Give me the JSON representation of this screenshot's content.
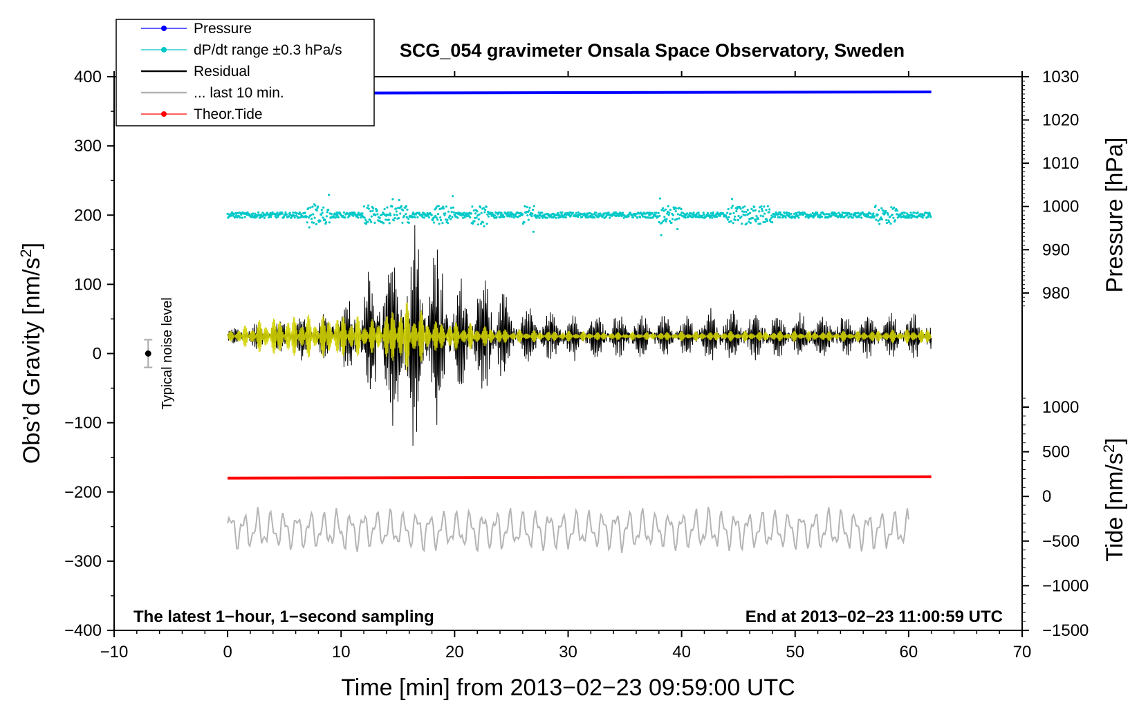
{
  "chart_data": {
    "type": "line",
    "title": "SCG_054 gravimeter Onsala Space Observatory, Sweden",
    "xlabel": "Time [min] from 2013−02−23 09:59:00 UTC",
    "ylabel_left": "Obs’d Gravity [nm/s",
    "ylabel_left_sup": "2",
    "ylabel_left_end": "]",
    "ylabel_right_top": "Pressure [hPa]",
    "ylabel_right_bottom": "Tide [nm/s",
    "ylabel_right_bottom_sup": "2",
    "ylabel_right_bottom_end": "]",
    "xlim": [
      -10,
      70
    ],
    "ylim": [
      -400,
      400
    ],
    "x_ticks": [
      -10,
      0,
      10,
      20,
      30,
      40,
      50,
      60,
      70
    ],
    "x_tick_labels": [
      "−10",
      "0",
      "10",
      "20",
      "30",
      "40",
      "50",
      "60",
      "70"
    ],
    "y_ticks": [
      400,
      300,
      200,
      100,
      0,
      -100,
      -200,
      -300,
      -400
    ],
    "y_tick_labels": [
      "400",
      "300",
      "200",
      "100",
      "0",
      "−100",
      "−200",
      "−300",
      "−400"
    ],
    "pressure_axis": {
      "ticks": [
        1030,
        1020,
        1010,
        1000,
        990,
        980
      ],
      "tick_labels": [
        "1030",
        "1020",
        "1010",
        "1000",
        "990",
        "980"
      ],
      "value_at_gravity_400": 1030,
      "value_at_gravity_0": 966
    },
    "tide_axis": {
      "ticks": [
        1000,
        500,
        0,
        -500,
        -1000,
        -1500
      ],
      "tick_labels": [
        "1000",
        "500",
        "0",
        "−500",
        "−1000",
        "−1500"
      ],
      "value_at_gravity_minus_400": -1500,
      "value_at_gravity_0": 1600
    },
    "legend": [
      {
        "label": "Pressure",
        "color": "#0000ff",
        "marker": true
      },
      {
        "label": "dP/dt range ±0.3 hPa/s",
        "color": "#00c8c8",
        "marker": true
      },
      {
        "label": "Residual",
        "color": "#000000",
        "marker": false
      },
      {
        "label": "... last 10 min.",
        "color": "#b4b4b4",
        "marker": false
      },
      {
        "label": "Theor.Tide",
        "color": "#ff0000",
        "marker": true
      }
    ],
    "legend_position": "top-left",
    "series": [
      {
        "name": "Pressure",
        "color": "#0000ff",
        "x_range": [
          0,
          62
        ],
        "y_gravity_start": 376,
        "y_gravity_end": 378
      },
      {
        "name": "dP/dt",
        "color": "#00c8c8",
        "x_range": [
          0,
          62
        ],
        "y_gravity_center": 200,
        "spread_typical": 4,
        "spread_max": 30,
        "active_windows_min": [
          [
            7,
            9
          ],
          [
            12,
            16
          ],
          [
            18,
            20
          ],
          [
            21.5,
            23
          ],
          [
            26,
            27
          ],
          [
            38,
            40
          ],
          [
            44,
            48
          ],
          [
            57,
            59
          ]
        ]
      },
      {
        "name": "Residual",
        "color": "#000000",
        "x_range": [
          0,
          62
        ],
        "y_gravity_center": 25,
        "amplitude_envelope": [
          [
            0,
            10
          ],
          [
            3,
            18
          ],
          [
            6,
            28
          ],
          [
            8,
            30
          ],
          [
            10,
            40
          ],
          [
            12,
            70
          ],
          [
            14,
            115
          ],
          [
            15,
            130
          ],
          [
            16,
            140
          ],
          [
            17,
            125
          ],
          [
            18,
            120
          ],
          [
            19,
            110
          ],
          [
            20,
            70
          ],
          [
            22,
            80
          ],
          [
            23.5,
            85
          ],
          [
            25,
            40
          ],
          [
            30,
            30
          ],
          [
            40,
            28
          ],
          [
            43,
            36
          ],
          [
            46,
            32
          ],
          [
            50,
            30
          ],
          [
            55,
            28
          ],
          [
            60,
            30
          ],
          [
            62,
            30
          ]
        ]
      },
      {
        "name": "Yellow residual",
        "color": "#d2d200",
        "x_range": [
          0,
          62
        ],
        "y_gravity_center": 25,
        "amplitude_envelope": [
          [
            0,
            8
          ],
          [
            4,
            30
          ],
          [
            8,
            32
          ],
          [
            10,
            34
          ],
          [
            13,
            25
          ],
          [
            15,
            50
          ],
          [
            16,
            52
          ],
          [
            18,
            26
          ],
          [
            22,
            18
          ],
          [
            25,
            10
          ],
          [
            35,
            6
          ],
          [
            45,
            8
          ],
          [
            55,
            8
          ],
          [
            62,
            12
          ]
        ]
      },
      {
        "name": "... last 10 min.",
        "color": "#b4b4b4",
        "x_range": [
          0,
          60
        ],
        "y_gravity_center": -255,
        "amplitude": 32
      },
      {
        "name": "Theor.Tide",
        "color": "#ff0000",
        "x_range": [
          0,
          62
        ],
        "y_gravity_start": -180,
        "y_gravity_end": -178
      }
    ],
    "noise_level": {
      "label": "Typical noise level",
      "x": -7,
      "y": 0,
      "error": 20
    },
    "footer_left": "The latest 1−hour, 1−second sampling",
    "footer_right": "End at 2013−02−23 11:00:59 UTC"
  }
}
